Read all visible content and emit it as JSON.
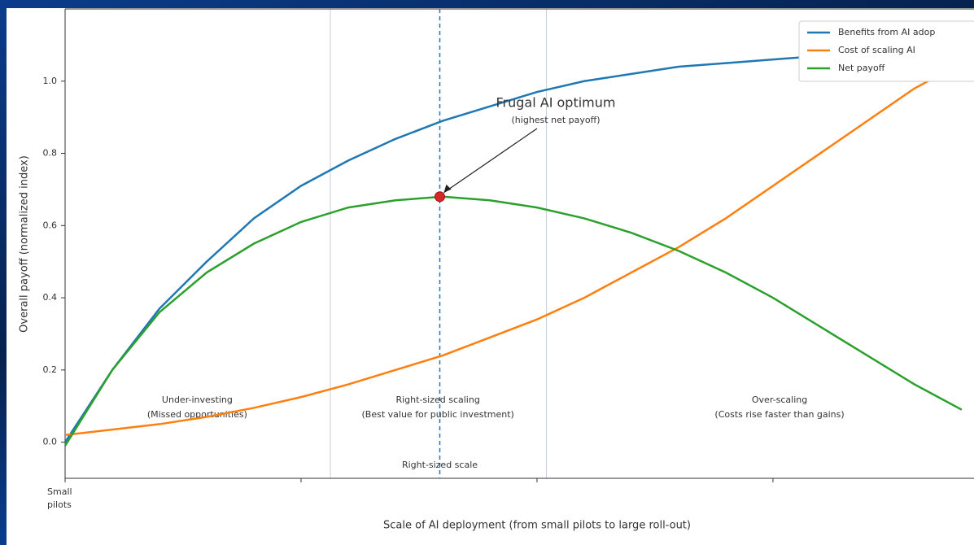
{
  "chart_data": {
    "type": "line",
    "ylabel": "Overall payoff (normalized index)",
    "xlabel": "Scale of AI deployment (from small pilots to large roll-out)",
    "x": [
      0,
      0.05,
      0.1,
      0.15,
      0.2,
      0.25,
      0.3,
      0.35,
      0.4,
      0.45,
      0.5,
      0.55,
      0.6,
      0.65,
      0.7,
      0.75,
      0.8,
      0.85,
      0.9,
      0.95
    ],
    "series": [
      {
        "name": "Benefits from AI adop",
        "color": "#1f77b4",
        "values": [
          0,
          0.2,
          0.37,
          0.5,
          0.62,
          0.71,
          0.78,
          0.84,
          0.89,
          0.93,
          0.97,
          1.0,
          1.02,
          1.04,
          1.05,
          1.06,
          1.07,
          1.08,
          1.09,
          1.095
        ]
      },
      {
        "name": "Cost of scaling AI",
        "color": "#ff7f0e",
        "values": [
          0.02,
          0.035,
          0.05,
          0.07,
          0.095,
          0.125,
          0.16,
          0.2,
          0.24,
          0.29,
          0.34,
          0.4,
          0.47,
          0.54,
          0.62,
          0.71,
          0.8,
          0.89,
          0.98,
          1.05
        ]
      },
      {
        "name": "Net payoff",
        "color": "#2ca02c",
        "values": [
          -0.01,
          0.2,
          0.36,
          0.47,
          0.55,
          0.61,
          0.65,
          0.67,
          0.68,
          0.67,
          0.65,
          0.62,
          0.58,
          0.53,
          0.47,
          0.4,
          0.32,
          0.24,
          0.16,
          0.09
        ]
      }
    ],
    "xlim": [
      0,
      0.963
    ],
    "ylim": [
      -0.1,
      1.2
    ],
    "xticks": [
      {
        "value": 0,
        "label": "Small pilots"
      },
      {
        "value": 0.25,
        "label": null
      },
      {
        "value": 0.5,
        "label": null
      },
      {
        "value": 0.75,
        "label": null
      }
    ],
    "yticks": [
      {
        "value": 0,
        "label": "0.0"
      },
      0.2,
      0.4,
      0.6,
      0.8,
      {
        "value": 1,
        "label": "1.0"
      }
    ],
    "boundaries": [
      0.281,
      0.51
    ],
    "optimum": {
      "x": 0.397,
      "y": 0.68,
      "color": "#d62728",
      "label": "Frugal AI optimum",
      "sublabel": "(highest net payoff)",
      "line_label": "Right-sized scale"
    },
    "regions": [
      {
        "label": "Under-investing",
        "sublabel": "(Missed opportunities)",
        "x": 0.14
      },
      {
        "label": "Right-sized scaling",
        "sublabel": "(Best value for public investment)",
        "x": 0.395
      },
      {
        "label": "Over-scaling",
        "sublabel": "(Costs rise faster than gains)",
        "x": 0.757
      }
    ],
    "legend": "upper right"
  }
}
